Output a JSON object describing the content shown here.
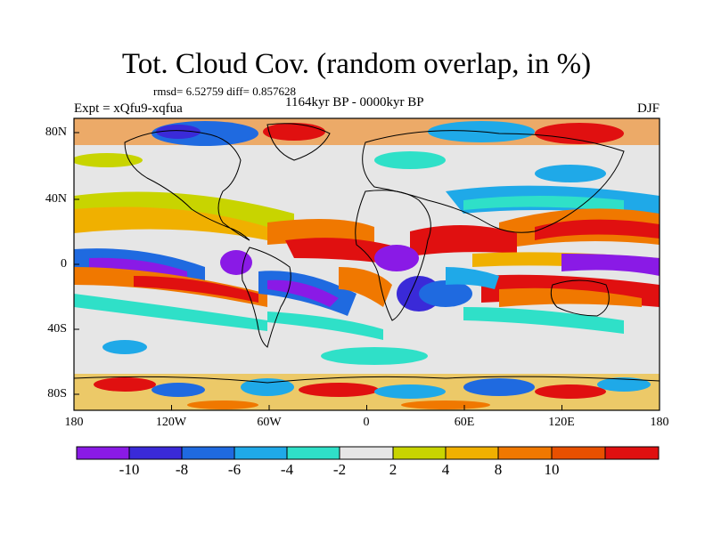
{
  "title": "Tot. Cloud Cov. (random overlap, in %)",
  "stats": "rmsd= 6.52759 diff= 0.857628",
  "experiment": "Expt = xQfu9-xqfua",
  "period": "1164kyr BP - 0000kyr BP",
  "season": "DJF",
  "lat_labels": [
    "80N",
    "40N",
    "0",
    "40S",
    "80S"
  ],
  "lon_labels": [
    "180",
    "120W",
    "60W",
    "0",
    "60E",
    "120E",
    "180"
  ],
  "colorbar": {
    "labels": [
      "-10",
      "-8",
      "-6",
      "-4",
      "-2",
      "2",
      "4",
      "8",
      "10"
    ],
    "colors": [
      "#8a1ae6",
      "#3a2ad8",
      "#1f6ae0",
      "#1fa9e8",
      "#2fe0c8",
      "#e6e6e6",
      "#c8d400",
      "#f0b000",
      "#f07800",
      "#e85000",
      "#e01010"
    ]
  }
}
